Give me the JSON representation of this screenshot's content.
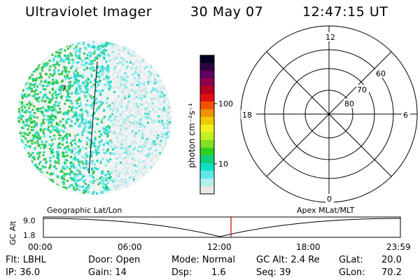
{
  "header": {
    "title": "Ultraviolet Imager",
    "date": "30 May 07",
    "time": "12:47:15 UT"
  },
  "colorbar": {
    "unit_label": "photon cm⁻²s⁻¹",
    "ticks": [
      "100",
      "10"
    ],
    "palette": [
      "#000020",
      "#300040",
      "#600060",
      "#900050",
      "#b80020",
      "#e01010",
      "#f05000",
      "#f09000",
      "#f0c800",
      "#f0f020",
      "#c0f020",
      "#80e020",
      "#30d020",
      "#10d080",
      "#10e0c0",
      "#60e8e8",
      "#b0f0f0",
      "#e8e8e8"
    ]
  },
  "polar": {
    "mlt_labels": [
      "12",
      "18",
      "6",
      "0"
    ],
    "lat_labels": [
      "60",
      "70",
      "80"
    ]
  },
  "image": {
    "marker_label": "7"
  },
  "orbit": {
    "left_label": "Geographic Lat/Lon",
    "right_label": "Apex MLat/MLT",
    "y_axis_title": "GC Alt",
    "y_ticks": [
      "9.0",
      "1.8"
    ],
    "x_ticks": [
      "00:00",
      "06:00",
      "12:00",
      "18:00",
      "23:59"
    ],
    "current_marker_color": "#c00000"
  },
  "info": {
    "flt": "Flt: LBHL",
    "ip": "IP: 36.0",
    "door": "Door: Open",
    "gain": "Gain: 14",
    "mode": "Mode: Normal",
    "dsp_label": "Dsp:",
    "dsp_value": "1.6",
    "gc_alt": "GC Alt: 2.4 Re",
    "seq": "Seq: 39",
    "glat_label": "GLat:",
    "glat_value": "20.0",
    "glon_label": "GLon:",
    "glon_value": "70.2"
  }
}
